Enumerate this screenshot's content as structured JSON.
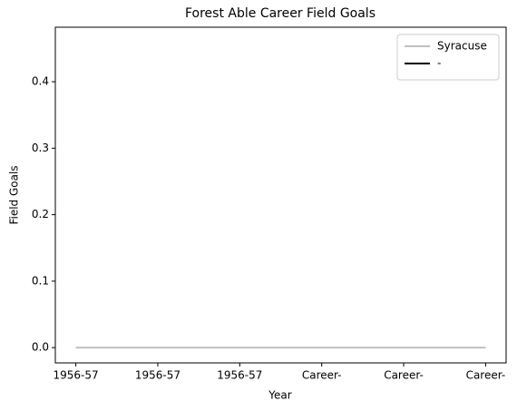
{
  "chart_data": {
    "type": "line",
    "title": "Forest Able Career Field Goals",
    "xlabel": "Year",
    "ylabel": "Field Goals",
    "categories": [
      "1956-57",
      "1956-57",
      "1956-57",
      "Career-",
      "Career-",
      "Career-"
    ],
    "series": [
      {
        "name": "Syracuse",
        "color": "#c0c0c0",
        "values": [
          0,
          0,
          0,
          0,
          0,
          0
        ]
      },
      {
        "name": "-",
        "color": "#000000",
        "values": [
          null,
          null,
          null,
          null,
          null,
          null
        ]
      }
    ],
    "ylim": [
      -0.023,
      0.482
    ],
    "yticks": [
      {
        "value": 0,
        "label": "0.0"
      },
      0.1,
      0.2,
      0.3,
      0.4
    ],
    "legend": "upper right"
  }
}
